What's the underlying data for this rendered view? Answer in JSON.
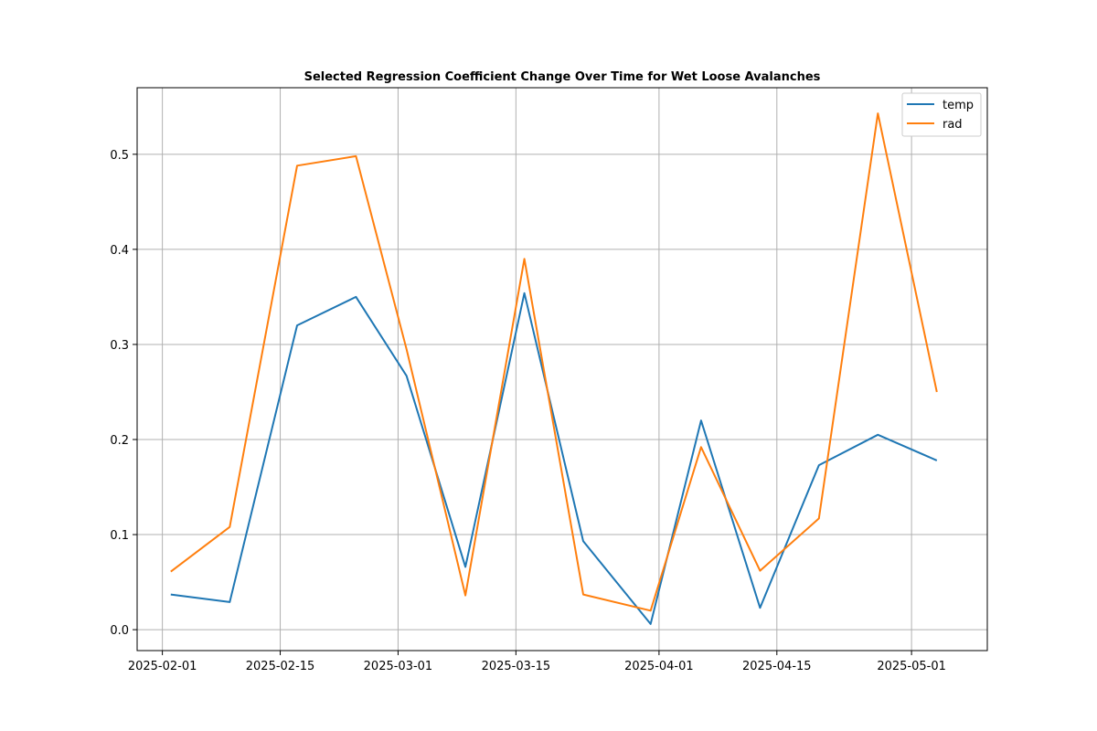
{
  "chart_data": {
    "type": "line",
    "title": "Selected Regression Coefficient Change Over Time for Wet Loose Avalanches",
    "xlabel": "",
    "ylabel": "",
    "x": [
      "2025-02-02",
      "2025-02-09",
      "2025-02-17",
      "2025-02-24",
      "2025-03-02",
      "2025-03-09",
      "2025-03-16",
      "2025-03-23",
      "2025-03-31",
      "2025-04-06",
      "2025-04-13",
      "2025-04-20",
      "2025-04-27",
      "2025-05-04"
    ],
    "series": [
      {
        "name": "temp",
        "color": "#1f77b4",
        "values": [
          0.037,
          0.029,
          0.32,
          0.35,
          0.267,
          0.066,
          0.354,
          0.093,
          0.006,
          0.22,
          0.023,
          0.173,
          0.205,
          0.178
        ]
      },
      {
        "name": "rad",
        "color": "#ff7f0e",
        "values": [
          0.061,
          0.108,
          0.488,
          0.498,
          0.295,
          0.036,
          0.39,
          0.037,
          0.02,
          0.192,
          0.062,
          0.117,
          0.543,
          0.25
        ]
      }
    ],
    "xlim": [
      "2025-01-29",
      "2025-05-10"
    ],
    "ylim": [
      -0.022,
      0.57
    ],
    "xticks": [
      "2025-02-01",
      "2025-02-15",
      "2025-03-01",
      "2025-03-15",
      "2025-04-01",
      "2025-04-15",
      "2025-05-01"
    ],
    "yticks": [
      0.0,
      0.1,
      0.2,
      0.3,
      0.4,
      0.5
    ],
    "ytick_labels": [
      "0.0",
      "0.1",
      "0.2",
      "0.3",
      "0.4",
      "0.5"
    ],
    "grid": true,
    "legend": "top-right"
  }
}
